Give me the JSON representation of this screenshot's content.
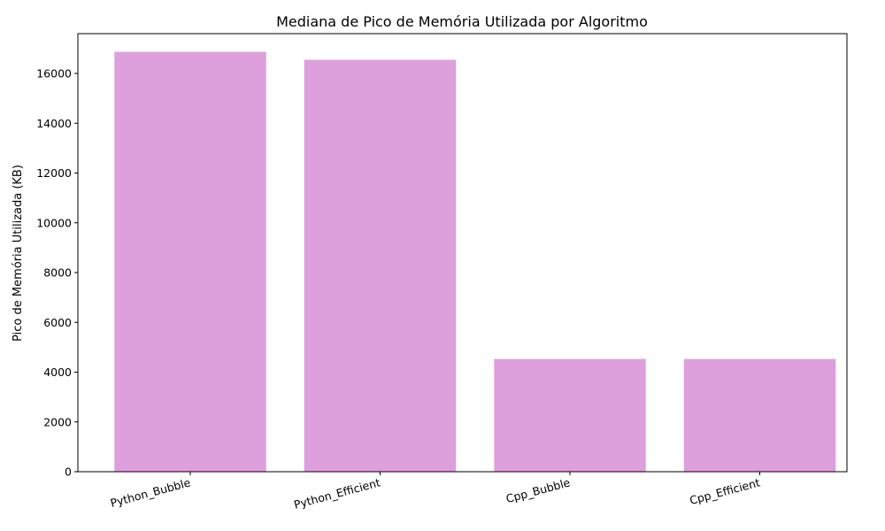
{
  "chart_data": {
    "type": "bar",
    "title": "Mediana de Pico de Memória Utilizada por Algoritmo",
    "xlabel": "",
    "ylabel": "Pico de Memória Utilizada (KB)",
    "categories": [
      "Python_Bubble",
      "Python_Efficient",
      "Cpp_Bubble",
      "Cpp_Efficient"
    ],
    "values": [
      16870,
      16550,
      4530,
      4530
    ],
    "ylim": [
      0,
      17600
    ],
    "yticks": [
      0,
      2000,
      4000,
      6000,
      8000,
      10000,
      12000,
      14000,
      16000
    ],
    "bar_color": "#dda0dd",
    "grid": false,
    "legend": "none"
  }
}
